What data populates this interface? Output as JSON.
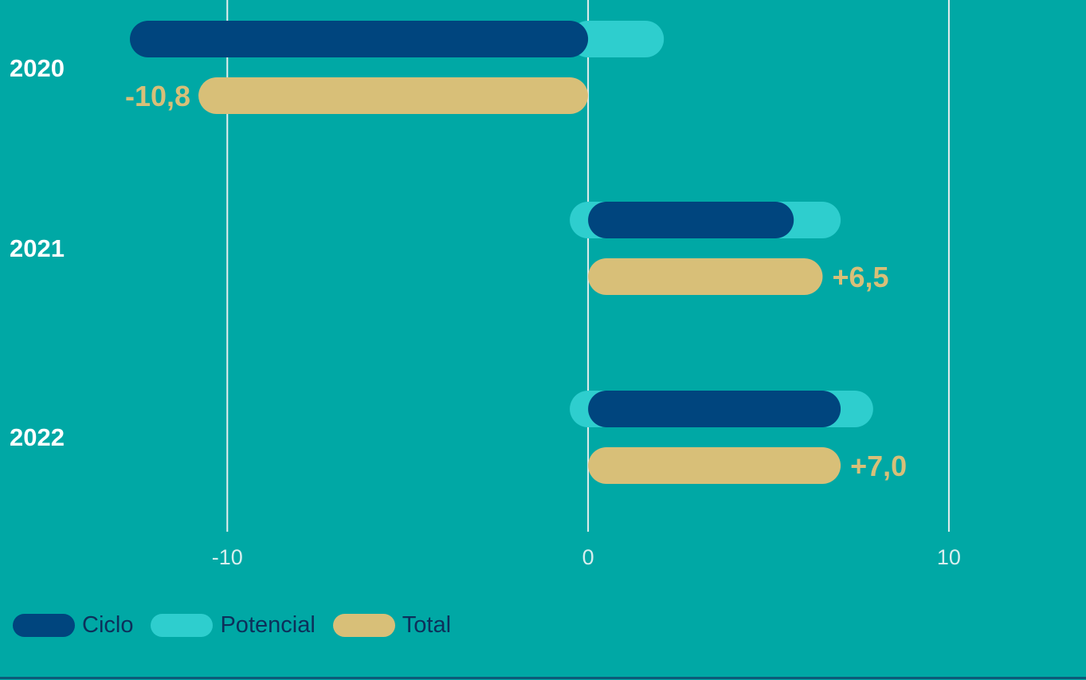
{
  "chart_data": {
    "type": "bar",
    "categories": [
      "2020",
      "2021",
      "2022"
    ],
    "series": [
      {
        "name": "Ciclo",
        "color": "#00457e",
        "values": [
          -12.7,
          5.7,
          7.0
        ]
      },
      {
        "name": "Potencial",
        "color": "#2ecece",
        "values": [
          2.1,
          1.3,
          0.9
        ]
      },
      {
        "name": "Total",
        "color": "#d8bf78",
        "values": [
          -10.8,
          6.5,
          7.0
        ]
      }
    ],
    "total_labels": [
      "-10,8",
      "+6,5",
      "+7,0"
    ],
    "xticks": [
      {
        "value": -10,
        "label": "-10"
      },
      {
        "value": 0,
        "label": "0"
      },
      {
        "value": 10,
        "label": "10"
      }
    ],
    "xlim": [
      -16.3,
      13.8
    ],
    "grid": true,
    "legend_position": "bottom-left"
  }
}
